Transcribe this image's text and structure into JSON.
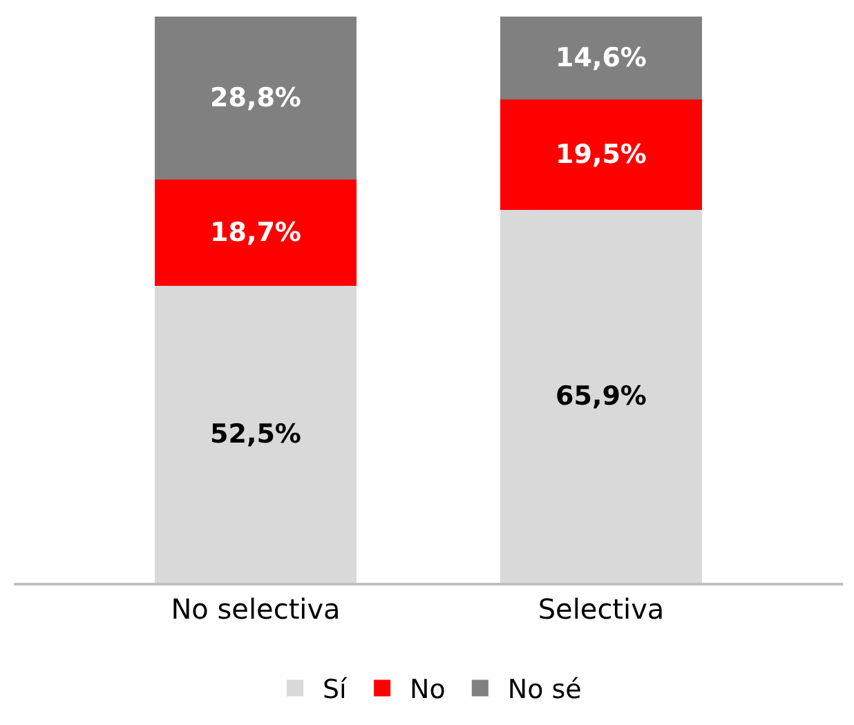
{
  "chart_data": {
    "type": "bar",
    "stacked": true,
    "categories": [
      "No selectiva",
      "Selectiva"
    ],
    "ylim": [
      0,
      100
    ],
    "legend": "bottom",
    "tick_labels": "x",
    "series": [
      {
        "name": "Sí",
        "color": "#d9d9d9",
        "values": [
          52.5,
          65.9
        ],
        "value_labels": [
          "52,5%",
          "65,9%"
        ]
      },
      {
        "name": "No",
        "color": "#ff0000",
        "values": [
          18.7,
          19.5
        ],
        "value_labels": [
          "18,7%",
          "19,5%"
        ]
      },
      {
        "name": "No sé",
        "color": "#808080",
        "values": [
          28.8,
          14.6
        ],
        "value_labels": [
          "28,8%",
          "14,6%"
        ]
      }
    ]
  }
}
